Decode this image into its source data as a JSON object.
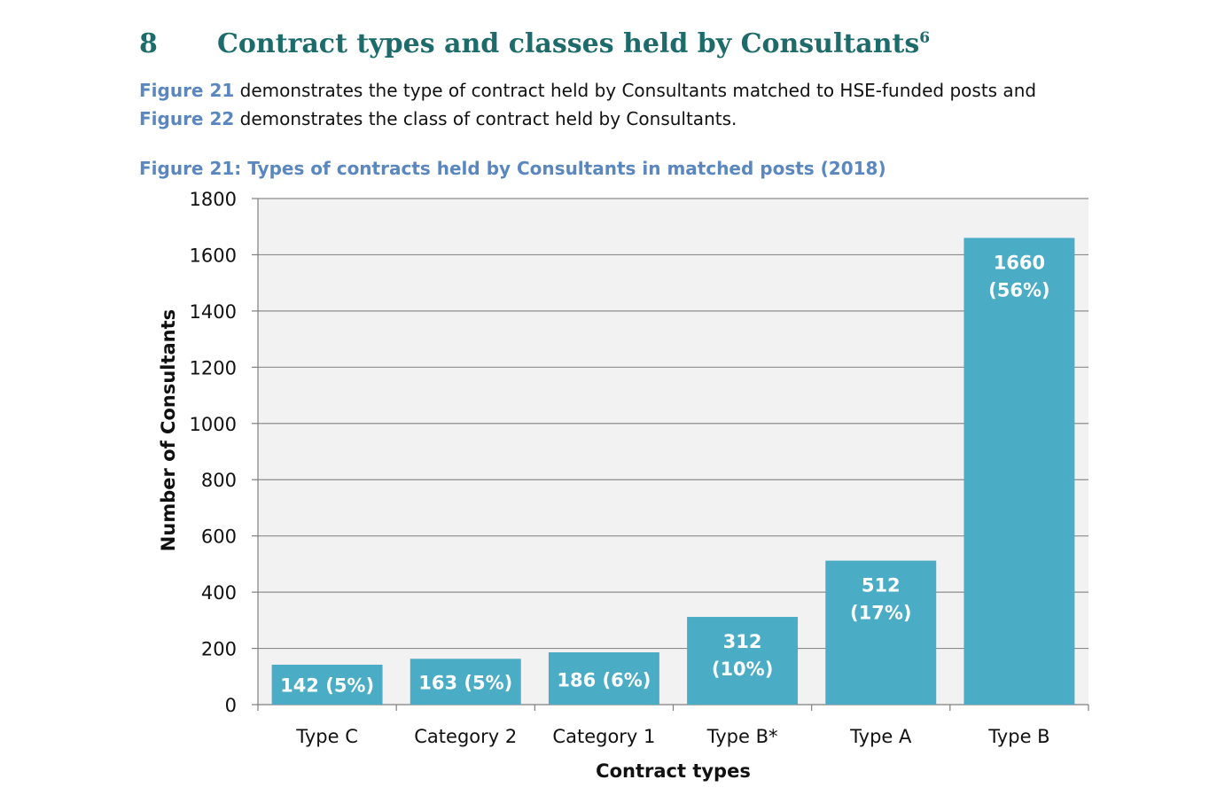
{
  "section": {
    "number": "8",
    "title": "Contract types and classes held by Consultants",
    "footnote_marker": "6"
  },
  "intro": {
    "ref1": "Figure 21",
    "text1": " demonstrates the type of contract held by Consultants matched to HSE-funded posts and",
    "ref2": "Figure 22",
    "text2": " demonstrates the class of contract held by Consultants."
  },
  "figure": {
    "caption": "Figure 21:  Types of contracts held by Consultants in matched posts (2018)"
  },
  "colors": {
    "heading": "#1d6b6b",
    "accent": "#5a87c0",
    "bar": "#4bacc6",
    "plot_background": "#f2f2f2",
    "gridline": "#8c8c8c",
    "bar_label": "#ffffff"
  },
  "chart_data": {
    "type": "bar",
    "categories": [
      "Type C",
      "Category 2",
      "Category 1",
      "Type B*",
      "Type A",
      "Type B"
    ],
    "values": [
      142,
      163,
      186,
      312,
      512,
      1660
    ],
    "data_labels": [
      [
        "142 (5%)"
      ],
      [
        "163 (5%)"
      ],
      [
        "186 (6%)"
      ],
      [
        "312",
        "(10%)"
      ],
      [
        "512",
        "(17%)"
      ],
      [
        "1660",
        "(56%)"
      ]
    ],
    "title": "Figure 21:  Types of contracts held by Consultants in matched posts (2018)",
    "xlabel": "Contract types",
    "ylabel": "Number of Consultants",
    "ylim": [
      0,
      1800
    ],
    "yticks": [
      0,
      200,
      400,
      600,
      800,
      1000,
      1200,
      1400,
      1600,
      1800
    ],
    "grid": true,
    "legend": "none"
  }
}
